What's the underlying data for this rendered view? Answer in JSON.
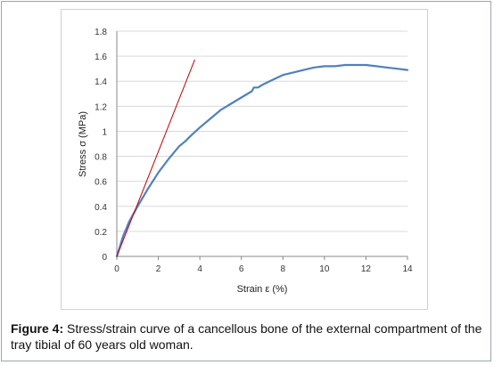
{
  "figure": {
    "caption_label": "Figure 4:",
    "caption_text": " Stress/strain curve of a cancellous bone of the external compartment of the tray tibial of 60 years old woman."
  },
  "chart_data": {
    "type": "line",
    "xlabel": "Strain ε (%)",
    "ylabel": "Stress σ (MPa)",
    "xlim": [
      0,
      14
    ],
    "ylim": [
      0,
      1.8
    ],
    "x_ticks": [
      0,
      2,
      4,
      6,
      8,
      10,
      12,
      14
    ],
    "y_ticks": [
      0,
      0.2,
      0.4,
      0.6,
      0.8,
      1,
      1.2,
      1.4,
      1.6,
      1.8
    ],
    "y_tick_labels": [
      "0",
      "0.2",
      "0.4",
      "0.6",
      "0.8",
      "1",
      "1.2",
      "1.4",
      "1.6",
      "1.8"
    ],
    "grid": "horizontal",
    "series": [
      {
        "color": "#4f81bd",
        "x": [
          0,
          0.3,
          0.6,
          1.0,
          1.5,
          2.0,
          2.5,
          3.0,
          3.3,
          3.6,
          4.0,
          4.5,
          5.0,
          5.5,
          6.0,
          6.5,
          6.6,
          6.8,
          7.0,
          7.5,
          8.0,
          8.5,
          9.0,
          9.5,
          10.0,
          10.5,
          11.0,
          11.5,
          12.0,
          12.5,
          13.0,
          13.5,
          14.0
        ],
        "y": [
          0,
          0.16,
          0.28,
          0.4,
          0.54,
          0.67,
          0.78,
          0.88,
          0.92,
          0.97,
          1.03,
          1.1,
          1.17,
          1.22,
          1.27,
          1.32,
          1.35,
          1.35,
          1.37,
          1.41,
          1.45,
          1.47,
          1.49,
          1.51,
          1.52,
          1.52,
          1.53,
          1.53,
          1.53,
          1.52,
          1.51,
          1.5,
          1.49
        ]
      },
      {
        "color": "#c00000",
        "x": [
          0,
          3.75
        ],
        "y": [
          0,
          1.57
        ]
      }
    ]
  }
}
